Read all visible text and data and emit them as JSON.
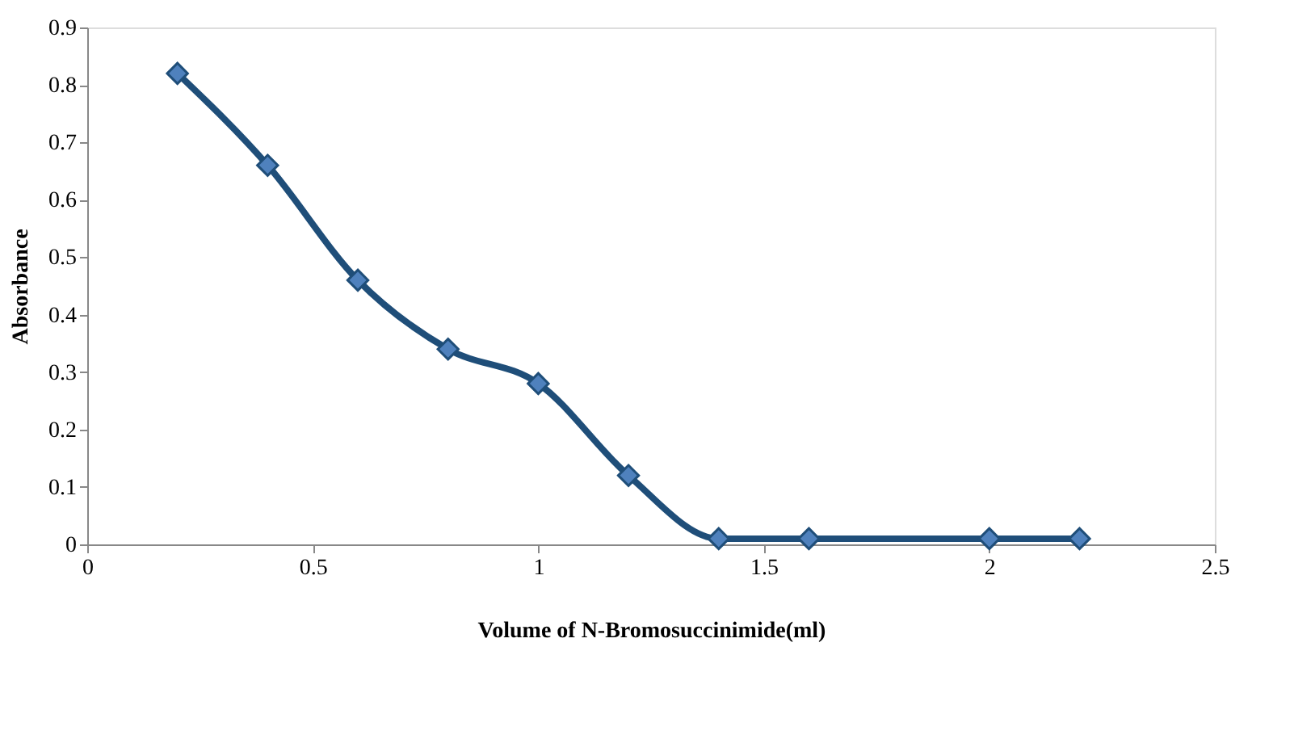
{
  "chart_data": {
    "type": "line",
    "xlabel": "Volume of N-Bromosuccinimide(ml)",
    "ylabel": "Absorbance",
    "x": [
      0.2,
      0.4,
      0.6,
      0.8,
      1.0,
      1.2,
      1.4,
      1.6,
      2.0,
      2.2
    ],
    "series": [
      {
        "color": "#1f4e79",
        "values": [
          0.82,
          0.66,
          0.46,
          0.34,
          0.28,
          0.12,
          0.01,
          0.01,
          0.01,
          0.01
        ]
      }
    ],
    "xlim": [
      0,
      2.5
    ],
    "xticks": [
      0,
      0.5,
      1,
      1.5,
      2,
      2.5
    ],
    "ylim": [
      0,
      0.9
    ],
    "yticks": [
      0,
      0.1,
      0.2,
      0.3,
      0.4,
      0.5,
      0.6,
      0.7,
      0.8,
      0.9
    ],
    "grid": false,
    "marker": "diamond",
    "line_style": "solid"
  }
}
